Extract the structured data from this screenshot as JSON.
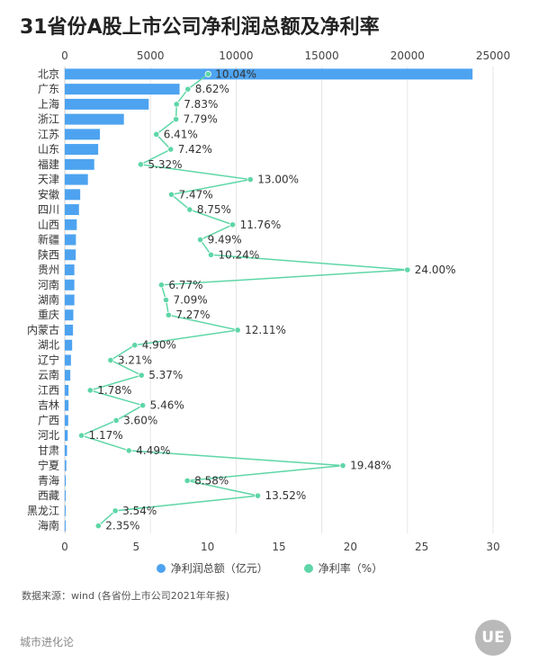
{
  "title": "31省份A股上市公司净利润总额及净利率",
  "source": "数据来源：wind (各省份上市公司2021年年报)",
  "brand": "城市进化论",
  "logo_text": "UE",
  "legend": {
    "bar_label": "净利润总额（亿元）",
    "line_label": "净利率（%）"
  },
  "colors": {
    "bar": "#4da3f0",
    "line": "#5ed6a7",
    "grid": "#e6e6e6"
  },
  "chart_data": {
    "type": "bar",
    "orientation": "horizontal",
    "categories": [
      "北京",
      "广东",
      "上海",
      "浙江",
      "江苏",
      "山东",
      "福建",
      "天津",
      "安徽",
      "四川",
      "山西",
      "新疆",
      "陕西",
      "贵州",
      "河南",
      "湖南",
      "重庆",
      "内蒙古",
      "湖北",
      "辽宁",
      "云南",
      "江西",
      "吉林",
      "广西",
      "河北",
      "甘肃",
      "宁夏",
      "青海",
      "西藏",
      "黑龙江",
      "海南"
    ],
    "series": [
      {
        "name": "净利润总额（亿元）",
        "type": "bar",
        "axis": "top",
        "values": [
          23800,
          6700,
          4900,
          3450,
          2050,
          1950,
          1720,
          1350,
          900,
          830,
          700,
          650,
          640,
          560,
          560,
          560,
          500,
          480,
          430,
          360,
          320,
          220,
          220,
          200,
          170,
          130,
          90,
          60,
          55,
          50,
          40
        ]
      },
      {
        "name": "净利率（%）",
        "type": "line",
        "axis": "bottom",
        "values": [
          10.04,
          8.62,
          7.83,
          7.79,
          6.41,
          7.42,
          5.32,
          13.0,
          7.47,
          8.75,
          11.76,
          9.49,
          10.24,
          24.0,
          6.77,
          7.09,
          7.27,
          12.11,
          4.9,
          3.21,
          5.37,
          1.78,
          5.46,
          3.6,
          1.17,
          4.49,
          19.48,
          8.58,
          13.52,
          3.54,
          2.35
        ],
        "labels": [
          "10.04%",
          "8.62%",
          "7.83%",
          "7.79%",
          "6.41%",
          "7.42%",
          "5.32%",
          "13.00%",
          "7.47%",
          "8.75%",
          "11.76%",
          "9.49%",
          "10.24%",
          "24.00%",
          "6.77%",
          "7.09%",
          "7.27%",
          "12.11%",
          "4.90%",
          "3.21%",
          "5.37%",
          "1.78%",
          "5.46%",
          "3.60%",
          "1.17%",
          "4.49%",
          "19.48%",
          "8.58%",
          "13.52%",
          "3.54%",
          "2.35%"
        ]
      }
    ],
    "top_axis": {
      "ticks": [
        0,
        5000,
        10000,
        15000,
        20000,
        25000
      ],
      "range": [
        0,
        25000
      ]
    },
    "bottom_axis": {
      "ticks": [
        0,
        5,
        10,
        15,
        20,
        25,
        30
      ],
      "range": [
        0,
        30
      ]
    },
    "grid": true,
    "legend_position": "bottom-center"
  }
}
